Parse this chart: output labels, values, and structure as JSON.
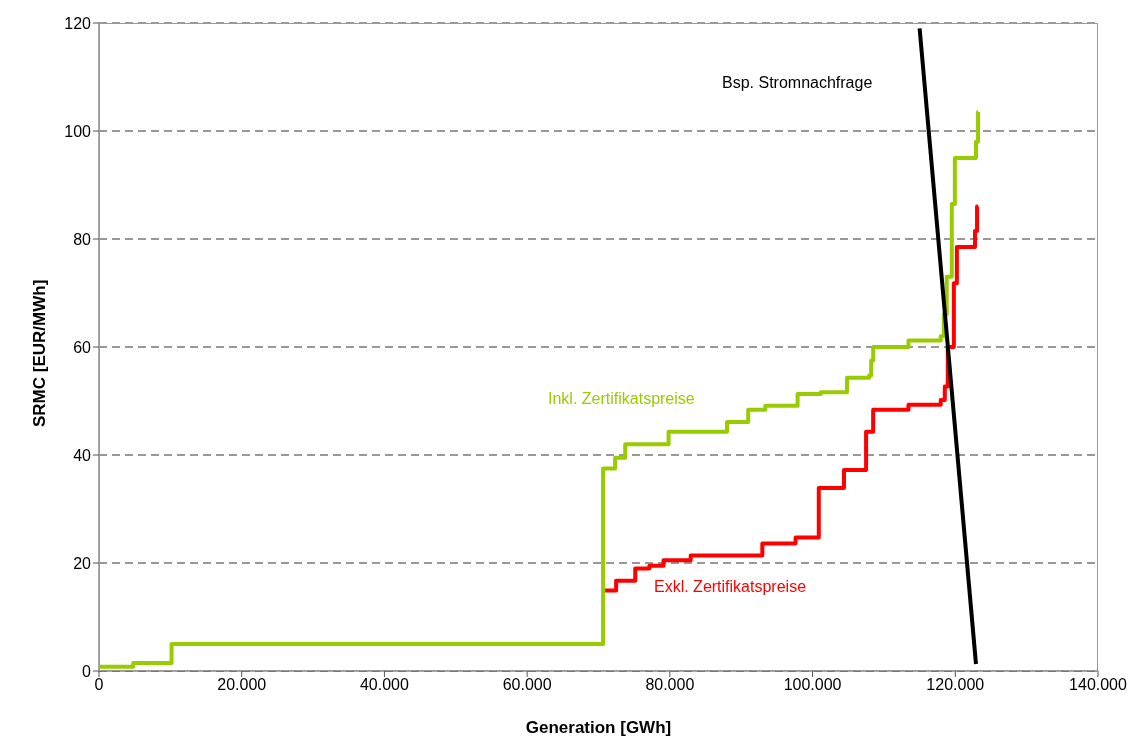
{
  "chart_data": {
    "type": "step",
    "xlabel": "Generation [GWh]",
    "ylabel": "SRMC [EUR/MWh]",
    "xlim": [
      0,
      140000
    ],
    "xticks": [
      {
        "value": 0,
        "label": "0"
      },
      {
        "value": 20000,
        "label": "20.000"
      },
      {
        "value": 40000,
        "label": "40.000"
      },
      {
        "value": 60000,
        "label": "60.000"
      },
      {
        "value": 80000,
        "label": "80.000"
      },
      {
        "value": 100000,
        "label": "100.000"
      },
      {
        "value": 120000,
        "label": "120.000"
      },
      {
        "value": 140000,
        "label": "140.000"
      }
    ],
    "ylim": [
      0,
      120
    ],
    "yticks": [
      0,
      20,
      40,
      60,
      80,
      100,
      120
    ],
    "grid": "y",
    "legend": false,
    "line_style": "solid",
    "marker": "none",
    "series": [
      {
        "name": "Exkl. Zertifikatspreise",
        "color": "#ff0000",
        "x": [
          70640,
          72470,
          75150,
          77130,
          79110,
          82920,
          92960,
          97620,
          100870,
          104400,
          107500,
          108490,
          113440,
          117960,
          118530,
          118950,
          119800,
          120220,
          122760,
          123050,
          123200
        ],
        "values": [
          14.9,
          16.7,
          19,
          19.5,
          20.5,
          21.4,
          23.6,
          24.7,
          33.9,
          37.2,
          44.3,
          48.4,
          49.3,
          50.2,
          52.7,
          60,
          71.8,
          78.5,
          81.5,
          86,
          86
        ]
      },
      {
        "name": "Inkl. Zertifikatspreise",
        "color": "#99cc00",
        "x": [
          0,
          4800,
          10170,
          70640,
          72330,
          73740,
          79820,
          88010,
          90980,
          93380,
          97900,
          101150,
          104820,
          107930,
          108210,
          108500,
          113440,
          117960,
          118390,
          118800,
          119510,
          119940,
          122900,
          123190,
          123200
        ],
        "values": [
          0.8,
          1.5,
          5,
          37.5,
          39.5,
          42,
          44.3,
          46.1,
          48.4,
          49.1,
          51.3,
          51.6,
          54.3,
          54.7,
          57.5,
          60,
          61.2,
          62,
          66,
          73,
          86.5,
          95,
          98,
          103.5,
          103.5
        ]
      },
      {
        "name": "Bsp. Stromnachfrage",
        "color": "#000000",
        "type": "line",
        "x": [
          115000,
          122900
        ],
        "values": [
          119,
          1.3
        ]
      }
    ]
  }
}
